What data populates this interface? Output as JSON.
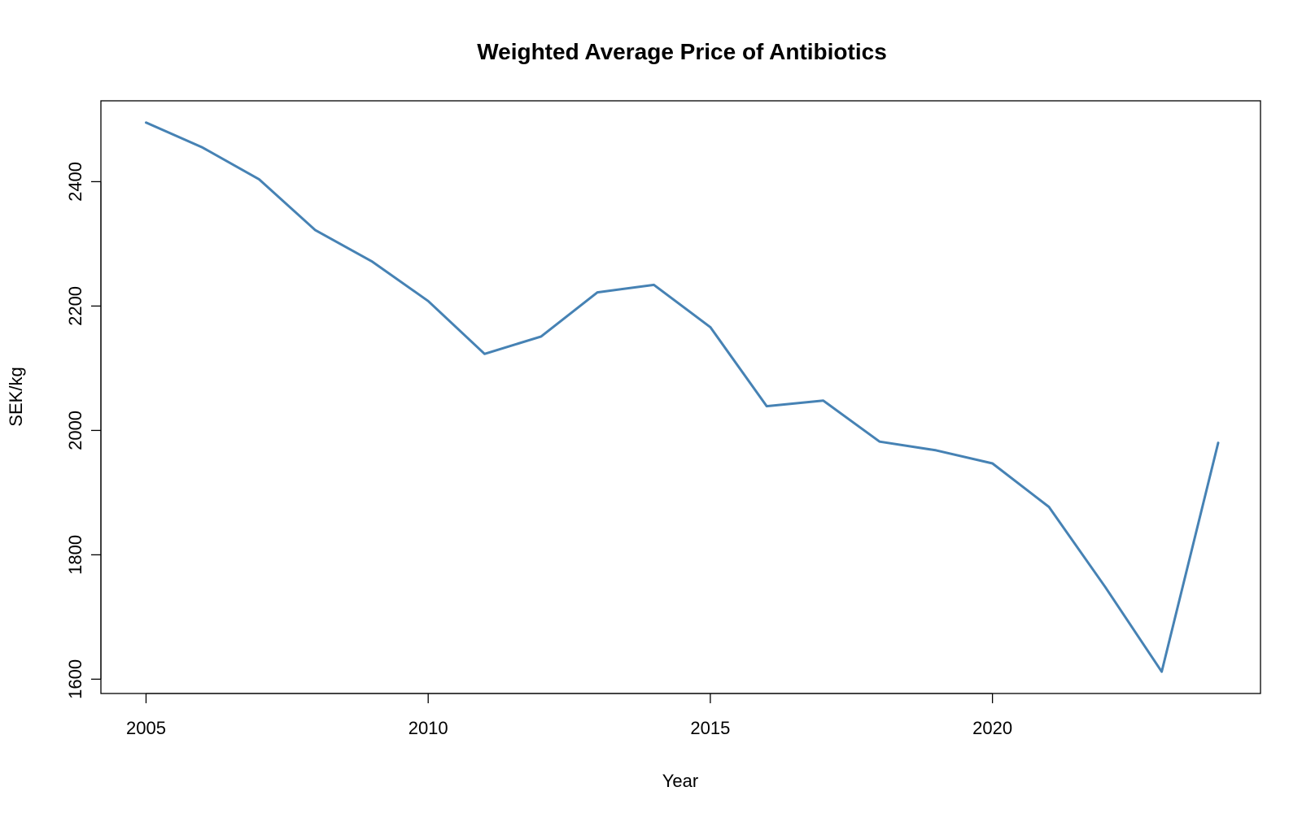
{
  "chart_data": {
    "type": "line",
    "title": "Weighted Average Price of Antibiotics",
    "xlabel": "Year",
    "ylabel": "SEK/kg",
    "xlim": [
      2004.2,
      2024.75
    ],
    "ylim": [
      1577,
      2530
    ],
    "x_ticks": [
      2005,
      2010,
      2015,
      2020
    ],
    "y_ticks": [
      1600,
      1800,
      2000,
      2200,
      2400
    ],
    "grid": false,
    "legend": "none",
    "series": [
      {
        "color": "#4682B4",
        "x": [
          2005,
          2006,
          2007,
          2008,
          2009,
          2010,
          2011,
          2012,
          2013,
          2014,
          2015,
          2016,
          2017,
          2018,
          2019,
          2020,
          2021,
          2022,
          2023,
          2024
        ],
        "y": [
          2495,
          2455,
          2404,
          2322,
          2272,
          2208,
          2123,
          2151,
          2222,
          2234,
          2166,
          2039,
          2048,
          1982,
          1968,
          1947,
          1877,
          1748,
          1612,
          1980
        ]
      }
    ]
  }
}
